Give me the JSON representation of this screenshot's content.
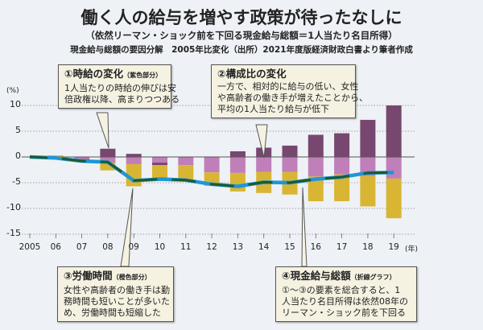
{
  "header": {
    "title": "働く人の給与を増やす政策が待ったなしに",
    "subtitle": "（依然リーマン・ショック前を下回る現金給与総額＝1人当たり名目所得）",
    "source": "現金給与総額の要因分解　2005年比変化（出所）2021年度版経済財政白書より筆者作成"
  },
  "callouts": [
    {
      "title": "①時給の変化",
      "note": "（紫色部分）",
      "lines": [
        "1人当たりの時給の伸びは安",
        "倍政権以降、高まりつつある"
      ]
    },
    {
      "title": "②構成比の変化",
      "note": "",
      "lines": [
        "一方で、相対的に給与の低い、女性",
        "や高齢者の働き手が増えたことから、",
        "平均の1人当たり給与が低下"
      ]
    },
    {
      "title": "③労働時間",
      "note": "（橙色部分）",
      "lines": [
        "女性や高齢者の働き手は勤",
        "務時間も短いことが多いた",
        "め、労働時間も短縮した"
      ]
    },
    {
      "title": "④現金給与総額",
      "note": "（折線グラフ）",
      "lines": [
        "①～③の要素を総合すると、1",
        "人当たり名目所得は依然08年の",
        "リーマン・ショック前を下回る"
      ]
    }
  ],
  "chart_data": {
    "type": "bar",
    "stacked": true,
    "ylabel": "(%)",
    "xlabel": "(年)",
    "ylim": [
      -15,
      10
    ],
    "yticks": [
      "10",
      "5",
      "0",
      "-5",
      "-10",
      "-15"
    ],
    "ytick_values": [
      10,
      5,
      0,
      -5,
      -10,
      -15
    ],
    "grid": true,
    "categories": [
      "2005",
      "06",
      "07",
      "08",
      "09",
      "10",
      "11",
      "12",
      "13",
      "14",
      "15",
      "16",
      "17",
      "18",
      "19"
    ],
    "series": [
      {
        "key": "hourly_wage",
        "color": "#77476f",
        "values": [
          0,
          0,
          -0.2,
          1.6,
          0.6,
          -0.5,
          0,
          0,
          1.1,
          1.8,
          2.2,
          4.3,
          4.6,
          7.2,
          10.0
        ]
      },
      {
        "key": "composition",
        "color": "#c07fb9",
        "values": [
          0,
          -0.3,
          -0.4,
          -1.1,
          -1.4,
          -1.1,
          -1.6,
          -3.0,
          -3.1,
          -2.9,
          -2.9,
          -3.8,
          -3.4,
          -3.7,
          -4.2
        ]
      },
      {
        "key": "hours",
        "color": "#d9b534",
        "values": [
          0,
          0.3,
          0,
          -1.5,
          -4.3,
          -2.6,
          -2.9,
          -2.6,
          -3.6,
          -4.1,
          -4.4,
          -4.8,
          -5.2,
          -5.9,
          -7.7
        ]
      },
      {
        "key": "total_cash_earnings",
        "type": "line",
        "color": "#1e96d8",
        "values": [
          0,
          -0.2,
          -0.8,
          -1.0,
          -4.6,
          -4.3,
          -4.5,
          -5.3,
          -5.7,
          -4.9,
          -5.0,
          -4.3,
          -3.9,
          -3.1,
          -3.0
        ]
      }
    ]
  }
}
